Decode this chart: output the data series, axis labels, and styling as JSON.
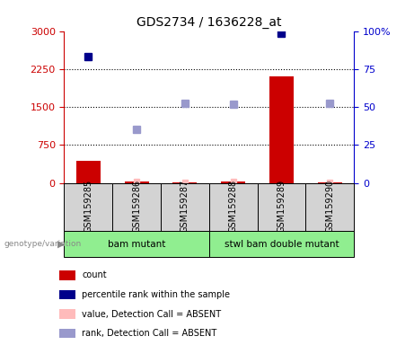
{
  "title": "GDS2734 / 1636228_at",
  "samples": [
    "GSM159285",
    "GSM159286",
    "GSM159287",
    "GSM159288",
    "GSM159289",
    "GSM159290"
  ],
  "bar_counts": [
    430,
    30,
    10,
    20,
    2100,
    15
  ],
  "percentile_ranks_present": [
    {
      "sample_idx": 0,
      "value": 2500
    },
    {
      "sample_idx": 4,
      "value": 2950
    }
  ],
  "percentile_ranks_absent": [
    {
      "sample_idx": 1,
      "value": 1050
    },
    {
      "sample_idx": 2,
      "value": 1580
    },
    {
      "sample_idx": 3,
      "value": 1555
    },
    {
      "sample_idx": 5,
      "value": 1570
    }
  ],
  "value_absent": [
    {
      "sample_idx": 1,
      "value": 25
    },
    {
      "sample_idx": 2,
      "value": 8
    },
    {
      "sample_idx": 3,
      "value": 20
    },
    {
      "sample_idx": 5,
      "value": 10
    }
  ],
  "ylim_left": [
    0,
    3000
  ],
  "ylim_right": [
    0,
    100
  ],
  "yticks_left": [
    0,
    750,
    1500,
    2250,
    3000
  ],
  "yticks_right": [
    0,
    25,
    50,
    75,
    100
  ],
  "bar_color": "#cc0000",
  "rank_present_color": "#00008B",
  "rank_absent_color": "#9999cc",
  "value_absent_color": "#ffbbbb",
  "left_axis_color": "#cc0000",
  "right_axis_color": "#0000cc",
  "group_box_color": "#d3d3d3",
  "group_label_green": "#90EE90",
  "legend_items": [
    {
      "color": "#cc0000",
      "label": "count"
    },
    {
      "color": "#00008B",
      "label": "percentile rank within the sample"
    },
    {
      "color": "#ffbbbb",
      "label": "value, Detection Call = ABSENT"
    },
    {
      "color": "#9999cc",
      "label": "rank, Detection Call = ABSENT"
    }
  ]
}
